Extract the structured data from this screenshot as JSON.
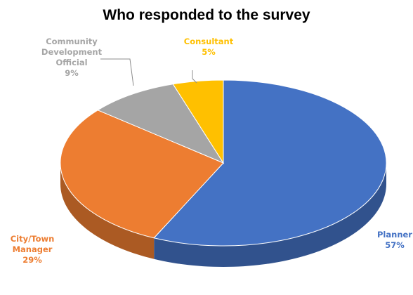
{
  "chart_data": {
    "type": "pie",
    "title": "Who responded to the survey",
    "slices": [
      {
        "name": "Planner",
        "label_lines": [
          "Planner",
          "57%"
        ],
        "value": 57,
        "color": "#4472C4"
      },
      {
        "name": "City/Town Manager",
        "label_lines": [
          "City/Town",
          "Manager",
          "29%"
        ],
        "value": 29,
        "color": "#ED7D31"
      },
      {
        "name": "Community Development Official",
        "label_lines": [
          "Community",
          "Development",
          "Official",
          "9%"
        ],
        "value": 9,
        "color": "#A5A5A5"
      },
      {
        "name": "Consultant",
        "label_lines": [
          "Consultant",
          "5%"
        ],
        "value": 5,
        "color": "#FFC000"
      }
    ],
    "style": "3d-pie",
    "legend": "none"
  }
}
